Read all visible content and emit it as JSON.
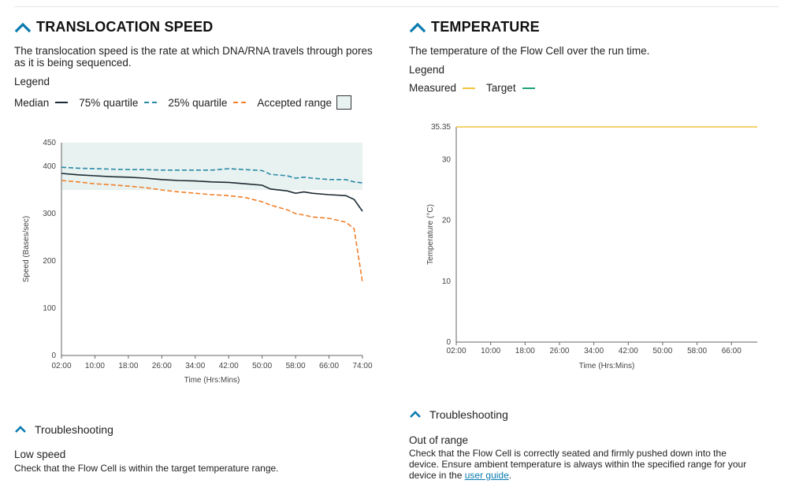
{
  "colors": {
    "accent": "#0a7bb0",
    "median": "#1c2a33",
    "q75": "#2a89a8",
    "q25": "#f07f2a",
    "accepted_range": "#e8f2f0",
    "measured": "#f2c33d",
    "target": "#1fa37c"
  },
  "speed": {
    "title": "TRANSLOCATION SPEED",
    "description": "The translocation speed is the rate at which DNA/RNA travels through pores as it is being sequenced.",
    "legend_title": "Legend",
    "legend": {
      "median": "Median",
      "q75": "75% quartile",
      "q25": "25% quartile",
      "accepted": "Accepted range"
    },
    "troubleshooting_label": "Troubleshooting",
    "troubleshooting_title": "Low speed",
    "troubleshooting_body": "Check that the Flow Cell is within the target temperature range."
  },
  "temperature": {
    "title": "TEMPERATURE",
    "description": "The temperature of the Flow Cell over the run time.",
    "legend_title": "Legend",
    "legend": {
      "measured": "Measured",
      "target": "Target"
    },
    "troubleshooting_label": "Troubleshooting",
    "troubleshooting_title": "Out of range",
    "troubleshooting_body_pre": "Check that the Flow Cell is correctly seated and firmly pushed down into the device. Ensure ambient temperature is always within the specified range for your device in the ",
    "troubleshooting_link": "user guide",
    "troubleshooting_body_post": "."
  },
  "chart_data": [
    {
      "type": "line",
      "xlabel": "Time (Hrs:Mins)",
      "ylabel": "Speed (Bases/sec)",
      "x": [
        "02:00",
        "06:00",
        "10:00",
        "14:00",
        "18:00",
        "22:00",
        "26:00",
        "30:00",
        "34:00",
        "38:00",
        "42:00",
        "46:00",
        "50:00",
        "52:00",
        "56:00",
        "58:00",
        "60:00",
        "62:00",
        "66:00",
        "70:00",
        "72:00",
        "74:00"
      ],
      "x_ticks": [
        "02:00",
        "10:00",
        "18:00",
        "26:00",
        "34:00",
        "42:00",
        "50:00",
        "58:00",
        "66:00",
        "74:00"
      ],
      "ylim": [
        0,
        450
      ],
      "y_ticks": [
        0,
        100,
        200,
        300,
        400,
        450
      ],
      "accepted_range": [
        350,
        450
      ],
      "series": [
        {
          "name": "Median",
          "values": [
            385,
            382,
            380,
            378,
            377,
            375,
            372,
            370,
            369,
            367,
            366,
            363,
            360,
            352,
            348,
            343,
            346,
            343,
            340,
            338,
            330,
            305
          ]
        },
        {
          "name": "75% quartile",
          "values": [
            398,
            396,
            395,
            394,
            393,
            393,
            392,
            392,
            392,
            392,
            395,
            393,
            391,
            383,
            380,
            375,
            377,
            375,
            372,
            372,
            367,
            365
          ]
        },
        {
          "name": "25% quartile",
          "values": [
            370,
            367,
            363,
            361,
            358,
            355,
            350,
            346,
            343,
            340,
            338,
            334,
            325,
            318,
            308,
            300,
            297,
            293,
            290,
            282,
            268,
            155
          ]
        }
      ]
    },
    {
      "type": "line",
      "xlabel": "Time (Hrs:Mins)",
      "ylabel": "Temperature (°C)",
      "x_ticks": [
        "02:00",
        "10:00",
        "18:00",
        "26:00",
        "34:00",
        "42:00",
        "50:00",
        "58:00",
        "66:00"
      ],
      "ylim": [
        0,
        35.35
      ],
      "y_ticks": [
        0,
        10,
        20,
        30,
        35.35
      ],
      "series": [
        {
          "name": "Measured",
          "x": [
            "02:00",
            "72:00"
          ],
          "values": [
            35.35,
            35.35
          ]
        }
      ]
    }
  ]
}
